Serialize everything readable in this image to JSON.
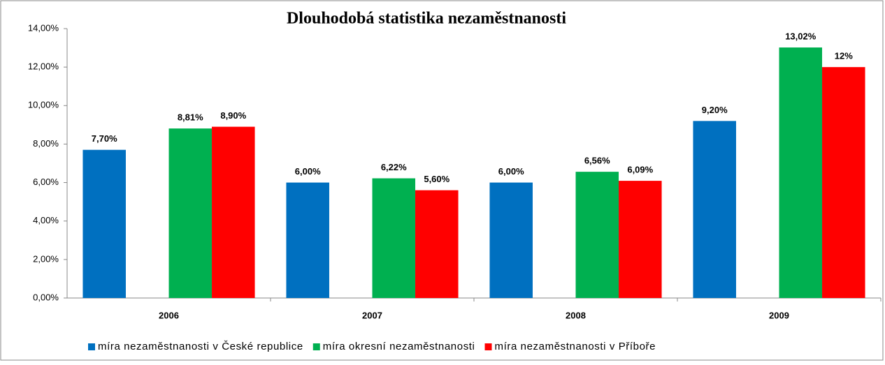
{
  "chart_data": {
    "type": "bar",
    "title": "Dlouhodobá statistika nezaměstnanosti",
    "categories": [
      "2006",
      "2007",
      "2008",
      "2009"
    ],
    "series": [
      {
        "name": "míra nezaměstnanosti v České republice",
        "color": "#0070c0",
        "values": [
          7.7,
          6,
          6,
          9.2
        ],
        "value_labels": [
          "7,70%",
          "6,00%",
          "6,00%",
          "9,20%"
        ]
      },
      {
        "name": "míra okresní nezaměstnanosti",
        "color": "#00b050",
        "values": [
          8.81,
          6.22,
          6.56,
          13.02
        ],
        "value_labels": [
          "8,81%",
          "6,22%",
          "6,56%",
          "13,02%"
        ]
      },
      {
        "name": "míra nezaměstnanosti v Příboře",
        "color": "#ff0000",
        "values": [
          8.9,
          5.6,
          6.09,
          12
        ],
        "value_labels": [
          "8,90%",
          "5,60%",
          "6,09%",
          "12%"
        ]
      }
    ],
    "ylim": [
      0,
      14
    ],
    "yticks": [
      {
        "value": 0,
        "label": "0,00%"
      },
      {
        "value": 2,
        "label": "2,00%"
      },
      {
        "value": 4,
        "label": "4,00%"
      },
      {
        "value": 6,
        "label": "6,00%"
      },
      {
        "value": 8,
        "label": "8,00%"
      },
      {
        "value": 10,
        "label": "10,00%"
      },
      {
        "value": 12,
        "label": "12,00%"
      },
      {
        "value": 14,
        "label": "14,00%"
      }
    ],
    "grid": false,
    "legend": "bottom"
  }
}
